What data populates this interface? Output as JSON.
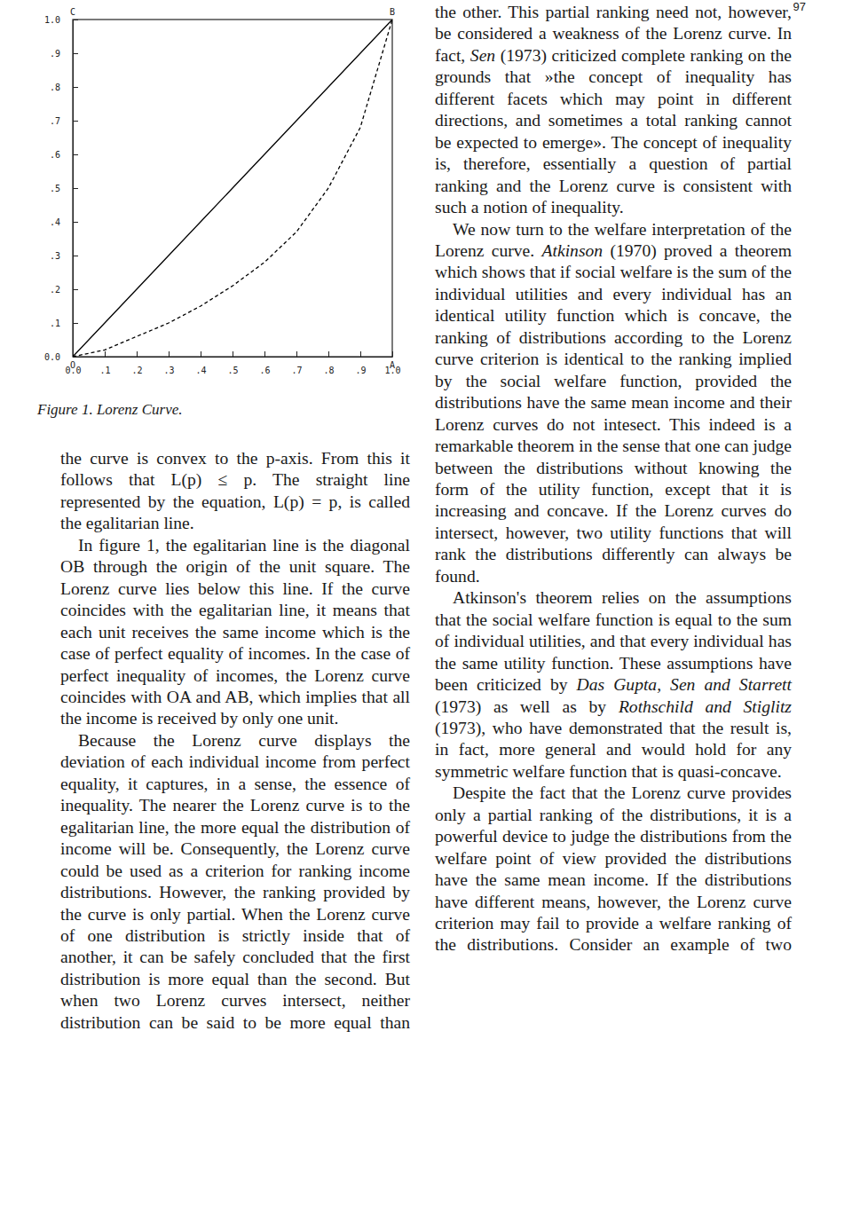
{
  "page_number": "97",
  "chart_data": {
    "type": "line",
    "title": "Figure 1. Lorenz Curve.",
    "x": [
      0,
      0.1,
      0.2,
      0.3,
      0.4,
      0.5,
      0.6,
      0.7,
      0.8,
      0.9,
      1.0
    ],
    "series": [
      {
        "color": "#000000",
        "line_style": "solid",
        "values": [
          0,
          0.1,
          0.2,
          0.3,
          0.4,
          0.5,
          0.6,
          0.7,
          0.8,
          0.9,
          1.0
        ]
      },
      {
        "color": "#000000",
        "line_style": "dashed",
        "values": [
          0,
          0.02,
          0.06,
          0.1,
          0.15,
          0.21,
          0.28,
          0.37,
          0.5,
          0.68,
          1.0
        ]
      }
    ],
    "xlim": [
      0,
      1
    ],
    "ylim": [
      0,
      1
    ],
    "xticks": [
      {
        "value": 0,
        "label": "0.0"
      },
      {
        "value": 0.1,
        "label": ".1"
      },
      {
        "value": 0.2,
        "label": ".2"
      },
      {
        "value": 0.3,
        "label": ".3"
      },
      {
        "value": 0.4,
        "label": ".4"
      },
      {
        "value": 0.5,
        "label": ".5"
      },
      {
        "value": 0.6,
        "label": ".6"
      },
      {
        "value": 0.7,
        "label": ".7"
      },
      {
        "value": 0.8,
        "label": ".8"
      },
      {
        "value": 0.9,
        "label": ".9"
      },
      {
        "value": 1,
        "label": "1.0"
      }
    ],
    "yticks": [
      {
        "value": 0,
        "label": "0.0"
      },
      {
        "value": 0.1,
        "label": ".1"
      },
      {
        "value": 0.2,
        "label": ".2"
      },
      {
        "value": 0.3,
        "label": ".3"
      },
      {
        "value": 0.4,
        "label": ".4"
      },
      {
        "value": 0.5,
        "label": ".5"
      },
      {
        "value": 0.6,
        "label": ".6"
      },
      {
        "value": 0.7,
        "label": ".7"
      },
      {
        "value": 0.8,
        "label": ".8"
      },
      {
        "value": 0.9,
        "label": ".9"
      },
      {
        "value": 1,
        "label": "1.0"
      }
    ],
    "grid": false,
    "annotations": [
      {
        "text": "C",
        "x": 0,
        "y": 1
      },
      {
        "text": "B",
        "x": 1,
        "y": 1
      },
      {
        "text": "O",
        "x": 0,
        "y": 0
      },
      {
        "text": "A",
        "x": 1,
        "y": 0
      }
    ]
  },
  "left_column": [
    [
      "the curve is convex to the p-axis. From this it follows that L(p) ≤ p. The straight line represented by the equation, L(p) = p, is called the egalitarian line."
    ],
    [
      "In figure 1, the egalitarian line is the diagonal OB through the origin of the unit square. The Lorenz curve lies below this line. If the curve coincides with the egalitarian line, it means that each unit receives the same income which is the case of perfect equality of incomes. In the case of perfect inequality of incomes, the Lorenz curve coincides with OA and AB, which implies that all the income is received by only one unit."
    ],
    [
      "Because the Lorenz curve displays the deviation of each individual income from perfect equality, it captures, in a sense, the essence of inequality. The nearer the Lorenz curve is to the egalitarian line, the more equal the distribution of income will be. Consequently, the Lorenz curve could be used as a criterion for ranking income distributions. However, the ranking provided by the curve is only partial. When the Lorenz curve of one distribution is strictly inside that of another, it can be safely concluded that the first distribution is more equal than the second. But when two Lorenz curves intersect, neither distribution can be said to be more equal than"
    ]
  ],
  "right_column": [
    [
      "the other. This partial ranking need not, however, be considered a weakness of the Lorenz curve. In fact, ",
      {
        "em": "Sen"
      },
      " (1973) criticized complete ranking on the grounds that »the concept of inequality has different facets which may point in different directions, and sometimes a total ranking cannot be expected to emerge». The concept of inequality is, therefore, essentially a question of partial ranking and the Lorenz curve is consistent with such a notion of inequality."
    ],
    [
      "We now turn to the welfare interpretation of the Lorenz curve. ",
      {
        "em": "Atkinson"
      },
      " (1970) proved a theorem which shows that if social welfare is the sum of the individual utilities and every individual has an identical utility function which is concave, the ranking of distributions according to the Lorenz curve criterion is identical to the ranking implied by the social welfare function, provided the distributions have the same mean income and their Lorenz curves do not intesect. This indeed is a remarkable theorem in the sense that one can judge between the distributions without knowing the form of the utility function, except that it is increasing and concave. If the Lorenz curves do intersect, however, two utility functions that will rank the distributions differently can always be found."
    ],
    [
      "Atkinson's theorem relies on the assumptions that the social welfare function is equal to the sum of individual utilities, and that every individual has the same utility function. These assumptions have been criticized by ",
      {
        "em": "Das Gupta, Sen and Starrett"
      },
      " (1973) as well as by ",
      {
        "em": "Rothschild and Stiglitz"
      },
      " (1973), who have demonstrated that the result is, in fact, more general and would hold for any symmetric welfare function that is quasi-concave."
    ],
    [
      "Despite the fact that the Lorenz curve provides only a partial ranking of the distributions, it is a powerful device to judge the distributions from the welfare point of view provided the distributions have the same mean income. If the distributions have different means, however, the Lorenz curve criterion may fail to provide a welfare ranking of the distributions. Consider an example of two"
    ]
  ]
}
